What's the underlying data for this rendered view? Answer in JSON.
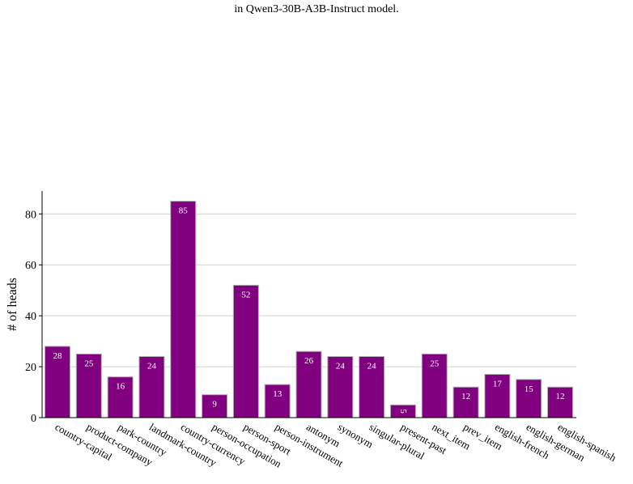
{
  "caption": "in Qwen3-30B-A3B-Instruct model.",
  "chart_data": {
    "type": "bar",
    "categories": [
      "country-capital",
      "product-company",
      "park-country",
      "landmark-country",
      "country-currency",
      "person-occupation",
      "person-sport",
      "person-instrument",
      "antonym",
      "synonym",
      "singular-plural",
      "present-past",
      "next_item",
      "prev_item",
      "english-french",
      "english-german",
      "english-spanish"
    ],
    "values": [
      28,
      25,
      16,
      24,
      85,
      9,
      52,
      13,
      26,
      24,
      24,
      5,
      25,
      12,
      17,
      15,
      12
    ],
    "xlabel": "",
    "ylabel": "# of heads",
    "ylim": [
      0,
      89
    ],
    "yticks": [
      0,
      20,
      40,
      60,
      80
    ],
    "grid": true,
    "bar_color": "#800080",
    "data_labels": true
  }
}
